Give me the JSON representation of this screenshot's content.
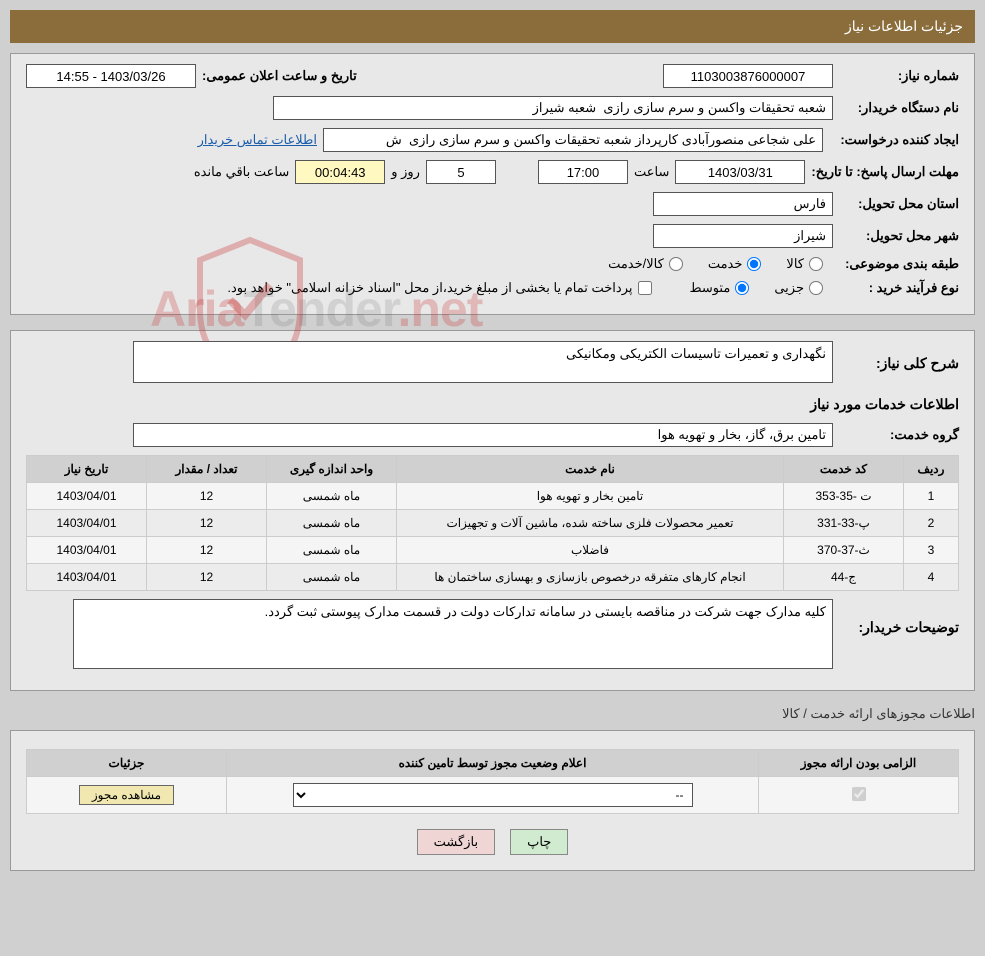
{
  "header_title": "جزئیات اطلاعات نیاز",
  "labels": {
    "need_number": "شماره نیاز:",
    "announce_datetime": "تاریخ و ساعت اعلان عمومی:",
    "buyer_org": "نام دستگاه خریدار:",
    "request_creator": "ایجاد کننده درخواست:",
    "buyer_contact": "اطلاعات تماس خریدار",
    "response_deadline": "مهلت ارسال پاسخ: تا تاریخ:",
    "hour": "ساعت",
    "days_and": "روز و",
    "hours_remaining": "ساعت باقي مانده",
    "delivery_province": "استان محل تحویل:",
    "delivery_city": "شهر محل تحویل:",
    "subject_category": "طبقه بندی موضوعی:",
    "goods": "کالا",
    "service": "خدمت",
    "goods_service": "کالا/خدمت",
    "purchase_process": "نوع فرآیند خرید :",
    "minor": "جزیی",
    "medium": "متوسط",
    "payment_note": "پرداخت تمام یا بخشی از مبلغ خرید،از محل \"اسناد خزانه اسلامی\" خواهد بود.",
    "overall_desc": "شرح کلی نیاز:",
    "services_info_title": "اطلاعات خدمات مورد نیاز",
    "service_group": "گروه خدمت:",
    "buyer_notes": "توضیحات خریدار:",
    "licenses_title": "اطلاعات مجوزهای ارائه خدمت / کالا",
    "print": "چاپ",
    "back": "بازگشت",
    "view_license": "مشاهده مجوز"
  },
  "values": {
    "need_number": "1103003876000007",
    "announce_datetime": "1403/03/26 - 14:55",
    "buyer_org": "شعبه تحقیقات واکسن و سرم سازی رازی  شعبه شیراز",
    "request_creator": "علی شجاعی منصورآبادی کارپرداز شعبه تحقیقات واکسن و سرم سازی رازی  ش",
    "deadline_date": "1403/03/31",
    "deadline_time": "17:00",
    "remaining_days": "5",
    "remaining_time": "00:04:43",
    "province": "فارس",
    "city": "شیراز",
    "overall_desc": "نگهداری و تعمیرات تاسیسات الکتریکی ومکانیکی",
    "service_group": "تامین برق، گاز، بخار و تهویه هوا",
    "buyer_notes": "کلیه مدارک جهت شرکت در مناقصه بایستی در سامانه تدارکات دولت در قسمت مدارک پیوستی ثبت گردد."
  },
  "category_selected": "service",
  "process_selected": "medium",
  "services_table": {
    "headers": {
      "row": "ردیف",
      "code": "کد خدمت",
      "name": "نام خدمت",
      "unit": "واحد اندازه گیری",
      "qty": "تعداد / مقدار",
      "date": "تاریخ نیاز"
    },
    "rows": [
      {
        "row": "1",
        "code": "ت -35-353",
        "name": "تامین بخار و تهویه هوا",
        "unit": "ماه شمسی",
        "qty": "12",
        "date": "1403/04/01"
      },
      {
        "row": "2",
        "code": "پ-33-331",
        "name": "تعمیر محصولات فلزی ساخته شده، ماشین آلات و تجهیزات",
        "unit": "ماه شمسی",
        "qty": "12",
        "date": "1403/04/01"
      },
      {
        "row": "3",
        "code": "ث-37-370",
        "name": "فاضلاب",
        "unit": "ماه شمسی",
        "qty": "12",
        "date": "1403/04/01"
      },
      {
        "row": "4",
        "code": "ج-44",
        "name": "انجام کارهای متفرقه درخصوص بازسازی و بهسازی ساختمان ها",
        "unit": "ماه شمسی",
        "qty": "12",
        "date": "1403/04/01"
      }
    ]
  },
  "licenses_table": {
    "headers": {
      "mandatory": "الزامی بودن ارائه مجوز",
      "status": "اعلام وضعیت مجوز توسط تامین کننده",
      "details": "جزئیات"
    },
    "status_placeholder": "--"
  },
  "watermark_text": "AriaTender.net",
  "colors": {
    "header_bg": "#8a6d3b",
    "panel_bg": "#e8e8e8",
    "body_bg": "#d0d0d0"
  }
}
